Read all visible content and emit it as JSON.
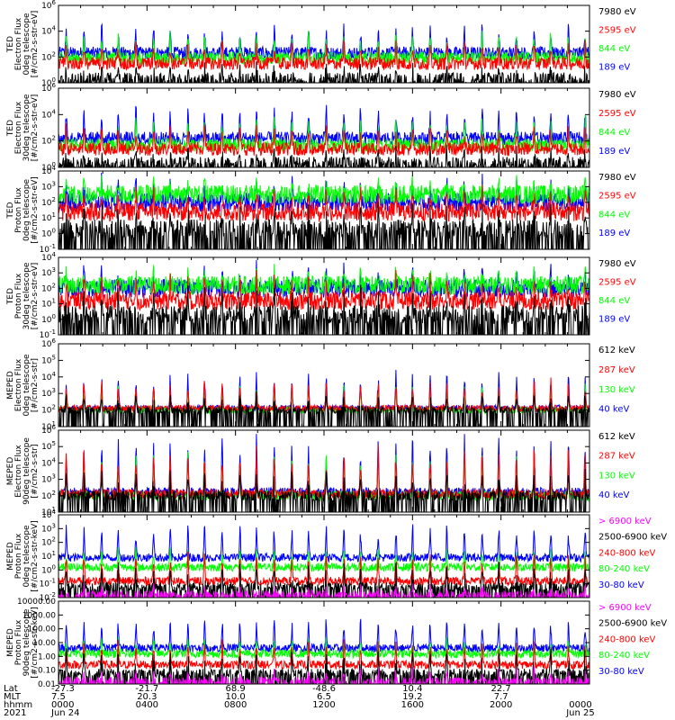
{
  "chart_data": {
    "type": "line",
    "colors": {
      "black": "#000000",
      "red": "#ff0000",
      "green": "#00ff00",
      "blue": "#0000ff",
      "magenta": "#ff00ff"
    },
    "panels": [
      {
        "name": "ted-electron-0deg",
        "ylabel": [
          "TED",
          "Electron Flux",
          "0deg telescope",
          "[#/cm2-s-str-eV]"
        ],
        "scale": "log",
        "ylim": [
          1,
          1000000
        ],
        "ticks": [
          {
            "v": 1,
            "t": "10^0"
          },
          {
            "v": 100,
            "t": "10^2"
          },
          {
            "v": 10000,
            "t": "10^4"
          },
          {
            "v": 1000000,
            "t": "10^6"
          }
        ],
        "legend": [
          {
            "label": "7980 eV",
            "color": "black"
          },
          {
            "label": "2595 eV",
            "color": "red"
          },
          {
            "label": "844 eV",
            "color": "green"
          },
          {
            "label": "189 eV",
            "color": "blue"
          }
        ]
      },
      {
        "name": "ted-electron-30deg",
        "ylabel": [
          "TED",
          "Electron Flux",
          "30deg telescope",
          "[#/cm2-s-str-eV]"
        ],
        "scale": "log",
        "ylim": [
          1,
          1000000
        ],
        "ticks": [
          {
            "v": 1,
            "t": "10^0"
          },
          {
            "v": 100,
            "t": "10^2"
          },
          {
            "v": 10000,
            "t": "10^4"
          },
          {
            "v": 1000000,
            "t": "10^6"
          }
        ],
        "legend": [
          {
            "label": "7980 eV",
            "color": "black"
          },
          {
            "label": "2595 eV",
            "color": "red"
          },
          {
            "label": "844 eV",
            "color": "green"
          },
          {
            "label": "189 eV",
            "color": "blue"
          }
        ]
      },
      {
        "name": "ted-proton-0deg",
        "ylabel": [
          "TED",
          "Proton Flux",
          "0deg telescope",
          "[#/cm2-s-str-eV]"
        ],
        "scale": "log",
        "ylim": [
          0.1,
          10000
        ],
        "ticks": [
          {
            "v": 0.1,
            "t": "10^-1"
          },
          {
            "v": 1,
            "t": "10^0"
          },
          {
            "v": 10,
            "t": "10^1"
          },
          {
            "v": 100,
            "t": "10^2"
          },
          {
            "v": 1000,
            "t": "10^3"
          },
          {
            "v": 10000,
            "t": "10^4"
          }
        ],
        "legend": [
          {
            "label": "7980 eV",
            "color": "black"
          },
          {
            "label": "2595 eV",
            "color": "red"
          },
          {
            "label": "844 eV",
            "color": "green"
          },
          {
            "label": "189 eV",
            "color": "blue"
          }
        ]
      },
      {
        "name": "ted-proton-30deg",
        "ylabel": [
          "TED",
          "Proton Flux",
          "30deg telescope",
          "[#/cm2-s-str-eV]"
        ],
        "scale": "log",
        "ylim": [
          0.1,
          10000
        ],
        "ticks": [
          {
            "v": 0.1,
            "t": "10^-1"
          },
          {
            "v": 1,
            "t": "10^0"
          },
          {
            "v": 10,
            "t": "10^1"
          },
          {
            "v": 100,
            "t": "10^2"
          },
          {
            "v": 1000,
            "t": "10^3"
          },
          {
            "v": 10000,
            "t": "10^4"
          }
        ],
        "legend": [
          {
            "label": "7980 eV",
            "color": "black"
          },
          {
            "label": "2595 eV",
            "color": "red"
          },
          {
            "label": "844 eV",
            "color": "green"
          },
          {
            "label": "189 eV",
            "color": "blue"
          }
        ]
      },
      {
        "name": "meped-electron-0deg",
        "ylabel": [
          "MEPED",
          "Electron Flux",
          "0deg telescope",
          "[#/cm2-s-str]"
        ],
        "scale": "log",
        "ylim": [
          10,
          1000000
        ],
        "ticks": [
          {
            "v": 10,
            "t": "10^1"
          },
          {
            "v": 100,
            "t": "10^2"
          },
          {
            "v": 1000,
            "t": "10^3"
          },
          {
            "v": 10000,
            "t": "10^4"
          },
          {
            "v": 100000,
            "t": "10^5"
          },
          {
            "v": 1000000,
            "t": "10^6"
          }
        ],
        "legend": [
          {
            "label": "612 keV",
            "color": "black"
          },
          {
            "label": "287 keV",
            "color": "red"
          },
          {
            "label": "130 keV",
            "color": "green"
          },
          {
            "label": "40 keV",
            "color": "blue"
          }
        ]
      },
      {
        "name": "meped-electron-90deg",
        "ylabel": [
          "MEPED",
          "Electron Flux",
          "90deg telescope",
          "[#/cm2-s-str]"
        ],
        "scale": "log",
        "ylim": [
          10,
          1000000
        ],
        "ticks": [
          {
            "v": 10,
            "t": "10^1"
          },
          {
            "v": 100,
            "t": "10^2"
          },
          {
            "v": 1000,
            "t": "10^3"
          },
          {
            "v": 10000,
            "t": "10^4"
          },
          {
            "v": 100000,
            "t": "10^5"
          },
          {
            "v": 1000000,
            "t": "10^6"
          }
        ],
        "legend": [
          {
            "label": "612 keV",
            "color": "black"
          },
          {
            "label": "287 keV",
            "color": "red"
          },
          {
            "label": "130 keV",
            "color": "green"
          },
          {
            "label": "40 keV",
            "color": "blue"
          }
        ]
      },
      {
        "name": "meped-proton-0deg",
        "ylabel": [
          "MEPED",
          "Proton Flux",
          "0deg telescope",
          "[#/cm2-s-str-keV]"
        ],
        "scale": "log",
        "ylim": [
          0.01,
          10000
        ],
        "ticks": [
          {
            "v": 0.01,
            "t": "10^-2"
          },
          {
            "v": 0.1,
            "t": "10^-1"
          },
          {
            "v": 1,
            "t": "10^0"
          },
          {
            "v": 10,
            "t": "10^1"
          },
          {
            "v": 100,
            "t": "10^2"
          },
          {
            "v": 1000,
            "t": "10^3"
          },
          {
            "v": 10000,
            "t": "10^4"
          }
        ],
        "legend": [
          {
            "label": "> 6900 keV",
            "color": "magenta"
          },
          {
            "label": "2500-6900 keV",
            "color": "black"
          },
          {
            "label": "240-800 keV",
            "color": "red"
          },
          {
            "label": "80-240 keV",
            "color": "green"
          },
          {
            "label": "30-80 keV",
            "color": "blue"
          }
        ]
      },
      {
        "name": "meped-proton-90deg",
        "ylabel": [
          "MEPED",
          "Proton Flux",
          "90deg telescope",
          "[#/cm2-s-str-keV]"
        ],
        "scale": "log",
        "ylim": [
          0.01,
          10000
        ],
        "ticks": [
          {
            "v": 0.01,
            "t": "0.01"
          },
          {
            "v": 0.1,
            "t": "0.10"
          },
          {
            "v": 1,
            "t": "1.00"
          },
          {
            "v": 10,
            "t": "10.00"
          },
          {
            "v": 100,
            "t": "100.00"
          },
          {
            "v": 1000,
            "t": "1000.00"
          },
          {
            "v": 10000,
            "t": "10000.00"
          }
        ],
        "legend": [
          {
            "label": "> 6900 keV",
            "color": "magenta"
          },
          {
            "label": "2500-6900 keV",
            "color": "black"
          },
          {
            "label": "240-800 keV",
            "color": "red"
          },
          {
            "label": "80-240 keV",
            "color": "green"
          },
          {
            "label": "30-80 keV",
            "color": "blue"
          }
        ]
      }
    ],
    "xaxis": {
      "row_labels": [
        "Lat",
        "MLT",
        "hhmm",
        "2021"
      ],
      "columns": [
        {
          "hour": 0,
          "lat": "-27.3",
          "mlt": "7.5",
          "hhmm": "0000",
          "date": "Jun 24"
        },
        {
          "hour": 4,
          "lat": "-21.7",
          "mlt": "20.3",
          "hhmm": "0400",
          "date": ""
        },
        {
          "hour": 8,
          "lat": "68.9",
          "mlt": "10.0",
          "hhmm": "0800",
          "date": ""
        },
        {
          "hour": 12,
          "lat": "-48.6",
          "mlt": "6.5",
          "hhmm": "1200",
          "date": ""
        },
        {
          "hour": 16,
          "lat": "10.4",
          "mlt": "19.2",
          "hhmm": "1600",
          "date": ""
        },
        {
          "hour": 20,
          "lat": "22.7",
          "mlt": "7.7",
          "hhmm": "2000",
          "date": ""
        },
        {
          "hour": 24,
          "lat": "",
          "mlt": "",
          "hhmm": "0000",
          "date": "Jun 25"
        }
      ],
      "range_hours": [
        0,
        24
      ]
    },
    "orbit_peak_hours": [
      0.35,
      1.15,
      1.95,
      2.7,
      3.5,
      4.3,
      5.05,
      5.85,
      6.6,
      7.4,
      8.2,
      8.95,
      9.75,
      10.55,
      11.3,
      12.1,
      12.9,
      13.65,
      14.45,
      15.25,
      16.0,
      16.8,
      17.55,
      18.35,
      19.15,
      19.9,
      20.7,
      21.5,
      22.25,
      23.05,
      23.8
    ]
  }
}
